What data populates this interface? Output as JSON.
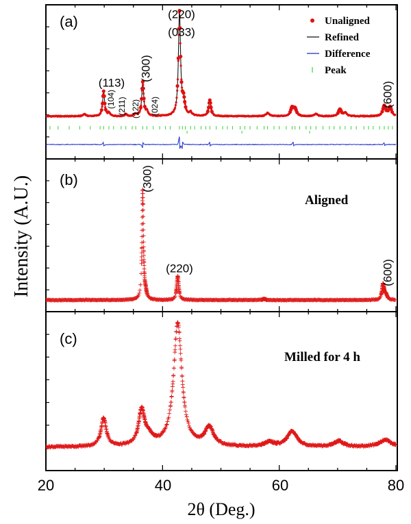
{
  "figure": {
    "xlabel": "2θ (Deg.)",
    "ylabel": "Intensity (A.U.)",
    "x_ticks": [
      "20",
      "40",
      "60",
      "80"
    ],
    "xlim": [
      20,
      80
    ]
  },
  "chart_data": [
    {
      "type": "line",
      "panel_label": "(a)",
      "xlim": [
        20,
        80
      ],
      "legend_position": "top-right",
      "legend": [
        "Unaligned",
        "Refined",
        "Difference",
        "Peak"
      ],
      "colors": {
        "unaligned": "#e01010",
        "refined": "#111111",
        "difference": "#1a2ccf",
        "peak": "#35d435"
      },
      "base": 0.05,
      "peaks": [
        {
          "x": 26.6,
          "h": 0.02,
          "w": 0.25
        },
        {
          "x": 29.9,
          "h": 0.22,
          "w": 0.2
        },
        {
          "x": 30.8,
          "h": 0.03,
          "w": 0.2
        },
        {
          "x": 33.7,
          "h": 0.02,
          "w": 0.2
        },
        {
          "x": 35.4,
          "h": 0.02,
          "w": 0.2
        },
        {
          "x": 36.6,
          "h": 0.3,
          "w": 0.2
        },
        {
          "x": 37.3,
          "h": 0.04,
          "w": 0.2
        },
        {
          "x": 42.9,
          "h": 0.92,
          "w": 0.22
        },
        {
          "x": 43.6,
          "h": 0.12,
          "w": 0.25
        },
        {
          "x": 44.8,
          "h": 0.03,
          "w": 0.25
        },
        {
          "x": 48.1,
          "h": 0.14,
          "w": 0.22
        },
        {
          "x": 58.0,
          "h": 0.03,
          "w": 0.3
        },
        {
          "x": 62.2,
          "h": 0.07,
          "w": 0.3
        },
        {
          "x": 62.7,
          "h": 0.06,
          "w": 0.3
        },
        {
          "x": 66.3,
          "h": 0.02,
          "w": 0.3
        },
        {
          "x": 70.4,
          "h": 0.06,
          "w": 0.3
        },
        {
          "x": 71.3,
          "h": 0.03,
          "w": 0.3
        },
        {
          "x": 78.0,
          "h": 0.09,
          "w": 0.3
        },
        {
          "x": 79.0,
          "h": 0.08,
          "w": 0.3
        }
      ],
      "diff_features": [
        {
          "x": 29.9,
          "a": 0.02
        },
        {
          "x": 36.6,
          "a": -0.03
        },
        {
          "x": 42.9,
          "a": 0.07
        },
        {
          "x": 43.4,
          "a": -0.04
        },
        {
          "x": 48.1,
          "a": 0.02
        },
        {
          "x": 62.4,
          "a": 0.02
        },
        {
          "x": 78.0,
          "a": 0.015
        }
      ],
      "peak_positions_row1": [
        20.7,
        22.1,
        24.0,
        25.8,
        27.6,
        29.3,
        29.9,
        30.8,
        31.6,
        32.9,
        33.7,
        34.8,
        35.4,
        36.6,
        37.3,
        38.4,
        39.5,
        40.5,
        41.3,
        42.9,
        43.4,
        43.9,
        44.8,
        45.5,
        46.6,
        47.4,
        48.1,
        49.2,
        50.3,
        51.1,
        52.0,
        53.3,
        54.1,
        55.0,
        56.2,
        57.4,
        58.0,
        59.1,
        60.0,
        61.2,
        62.2,
        62.7,
        63.5,
        64.6,
        65.4,
        66.3,
        67.5,
        68.6,
        69.4,
        70.4,
        71.3,
        72.3,
        73.2,
        74.5,
        75.3,
        76.1,
        77.2,
        78.0,
        78.7,
        79.4
      ],
      "peak_positions_row2": [
        44.2,
        53.6,
        65.2
      ],
      "annotations": [
        {
          "text": "(220)",
          "x": 42.9,
          "size": "large"
        },
        {
          "text": "(033)",
          "x": 42.9,
          "size": "large"
        },
        {
          "text": "(113)",
          "x": 31.2,
          "size": "large"
        },
        {
          "text": "(300)",
          "x": 36.6,
          "size": "large",
          "rotated": true
        },
        {
          "text": "(104)",
          "x": 30.9,
          "size": "small",
          "rotated": true
        },
        {
          "text": "(211)",
          "x": 33.4,
          "size": "small",
          "rotated": true
        },
        {
          "text": "(122)",
          "x": 35.4,
          "size": "small",
          "rotated": true
        },
        {
          "text": "(024)",
          "x": 37.2,
          "size": "small",
          "rotated": true
        },
        {
          "text": "(600)",
          "x": 78.0,
          "size": "large",
          "rotated": true
        }
      ]
    },
    {
      "type": "line",
      "panel_label": "(b)",
      "title": "Aligned",
      "xlim": [
        20,
        80
      ],
      "marker": "+",
      "base": 0.03,
      "peaks": [
        {
          "x": 36.6,
          "h": 0.97,
          "w": 0.15
        },
        {
          "x": 37.1,
          "h": 0.05,
          "w": 0.2
        },
        {
          "x": 42.6,
          "h": 0.21,
          "w": 0.2
        },
        {
          "x": 57.4,
          "h": 0.01,
          "w": 0.3
        },
        {
          "x": 77.8,
          "h": 0.14,
          "w": 0.22
        },
        {
          "x": 78.3,
          "h": 0.04,
          "w": 0.25
        }
      ],
      "annotations": [
        {
          "text": "(300)",
          "x": 36.6,
          "rotated": true
        },
        {
          "text": "(220)",
          "x": 42.6,
          "rotated": false
        },
        {
          "text": "(600)",
          "x": 77.8,
          "rotated": true
        }
      ]
    },
    {
      "type": "line",
      "panel_label": "(c)",
      "title": "Milled for 4 h",
      "xlim": [
        20,
        80
      ],
      "marker": "+",
      "base": 0.06,
      "peaks": [
        {
          "x": 29.9,
          "h": 0.2,
          "w": 0.55
        },
        {
          "x": 36.4,
          "h": 0.24,
          "w": 0.6
        },
        {
          "x": 37.6,
          "h": 0.06,
          "w": 1.0
        },
        {
          "x": 42.6,
          "h": 0.88,
          "w": 0.85
        },
        {
          "x": 48.0,
          "h": 0.13,
          "w": 0.9
        },
        {
          "x": 58.3,
          "h": 0.03,
          "w": 1.0
        },
        {
          "x": 62.2,
          "h": 0.11,
          "w": 1.0
        },
        {
          "x": 70.2,
          "h": 0.04,
          "w": 1.0
        },
        {
          "x": 78.2,
          "h": 0.05,
          "w": 1.2
        }
      ]
    }
  ]
}
